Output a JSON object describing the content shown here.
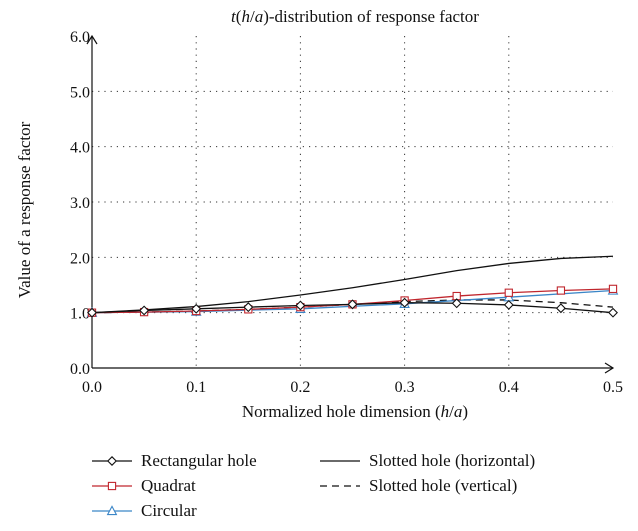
{
  "chart_data": {
    "type": "line",
    "title_parts": [
      "t",
      "(",
      "h",
      "/",
      "a",
      ")-distribution of response factor"
    ],
    "xlabel_parts": [
      "Normalized hole dimension (",
      "h",
      "/",
      "a",
      ")"
    ],
    "ylabel": "Value of a response factor",
    "xlim": [
      0.0,
      0.5
    ],
    "ylim": [
      0.0,
      6.0
    ],
    "x_ticks": [
      "0.0",
      "0.1",
      "0.2",
      "0.3",
      "0.4",
      "0.5"
    ],
    "y_ticks": [
      "0.0",
      "1.0",
      "2.0",
      "3.0",
      "4.0",
      "5.0",
      "6.0"
    ],
    "grid": "dotted",
    "legend_position": "bottom",
    "series": [
      {
        "name": "Rectangular hole",
        "color": "#111111",
        "marker": "diamond",
        "dash": "solid",
        "x": [
          0.0,
          0.05,
          0.1,
          0.15,
          0.2,
          0.25,
          0.3,
          0.35,
          0.4,
          0.45,
          0.5
        ],
        "y": [
          1.0,
          1.04,
          1.07,
          1.1,
          1.13,
          1.15,
          1.18,
          1.17,
          1.14,
          1.08,
          1.0
        ]
      },
      {
        "name": "Quadrat",
        "color": "#c0262d",
        "marker": "square",
        "dash": "solid",
        "x": [
          0.0,
          0.05,
          0.1,
          0.15,
          0.2,
          0.25,
          0.3,
          0.35,
          0.4,
          0.45,
          0.5
        ],
        "y": [
          1.0,
          1.01,
          1.03,
          1.06,
          1.1,
          1.15,
          1.22,
          1.3,
          1.36,
          1.4,
          1.43
        ]
      },
      {
        "name": "Circular",
        "color": "#3b86c7",
        "marker": "triangle",
        "dash": "solid",
        "x": [
          0.0,
          0.1,
          0.2,
          0.3,
          0.4,
          0.5
        ],
        "y": [
          1.0,
          1.02,
          1.07,
          1.16,
          1.28,
          1.4
        ]
      },
      {
        "name": "Slotted hole (horizontal)",
        "color": "#111111",
        "marker": "none",
        "dash": "solid",
        "x": [
          0.0,
          0.05,
          0.1,
          0.15,
          0.2,
          0.25,
          0.3,
          0.35,
          0.4,
          0.45,
          0.5
        ],
        "y": [
          1.0,
          1.05,
          1.11,
          1.2,
          1.32,
          1.45,
          1.6,
          1.76,
          1.89,
          1.98,
          2.02
        ]
      },
      {
        "name": "Slotted hole (vertical)",
        "color": "#111111",
        "marker": "none",
        "dash": "dashed",
        "x": [
          0.0,
          0.05,
          0.1,
          0.15,
          0.2,
          0.25,
          0.3,
          0.35,
          0.4,
          0.45,
          0.5
        ],
        "y": [
          1.0,
          1.01,
          1.03,
          1.06,
          1.1,
          1.15,
          1.2,
          1.23,
          1.23,
          1.18,
          1.1
        ]
      }
    ],
    "legend_columns": [
      [
        "Rectangular hole",
        "Quadrat",
        "Circular"
      ],
      [
        "Slotted hole (horizontal)",
        "Slotted hole (vertical)"
      ]
    ]
  }
}
